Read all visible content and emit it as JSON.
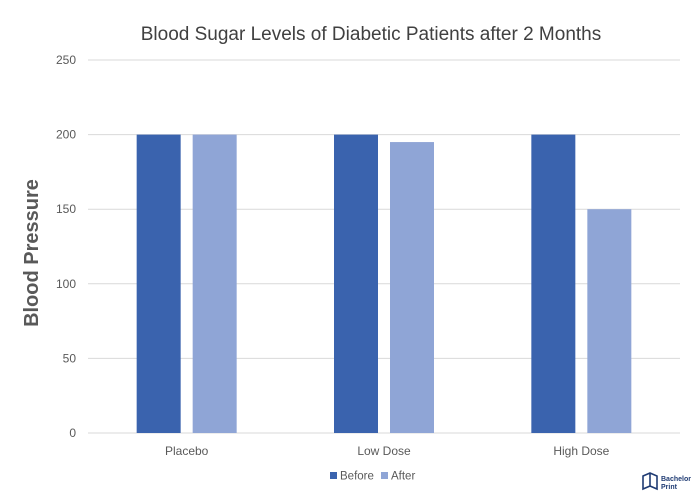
{
  "chart_data": {
    "type": "bar",
    "title": "Blood Sugar  Levels of Diabetic Patients after 2 Months",
    "xlabel": "",
    "ylabel": "Blood Pressure",
    "categories": [
      "Placebo",
      "Low Dose",
      "High Dose"
    ],
    "series": [
      {
        "name": "Before",
        "values": [
          200,
          200,
          200
        ],
        "color": "#3a63ae"
      },
      {
        "name": "After",
        "values": [
          200,
          195,
          150
        ],
        "color": "#8fa5d6"
      }
    ],
    "ylim": [
      0,
      250
    ],
    "yticks": [
      0,
      50,
      100,
      150,
      200,
      250
    ],
    "grid": true,
    "legend_position": "bottom"
  },
  "logo": {
    "line1": "Bachelor",
    "line2": "Print",
    "icon": "book-logo-icon"
  },
  "colors": {
    "grid": "#d9d9d9",
    "text": "#595959"
  }
}
